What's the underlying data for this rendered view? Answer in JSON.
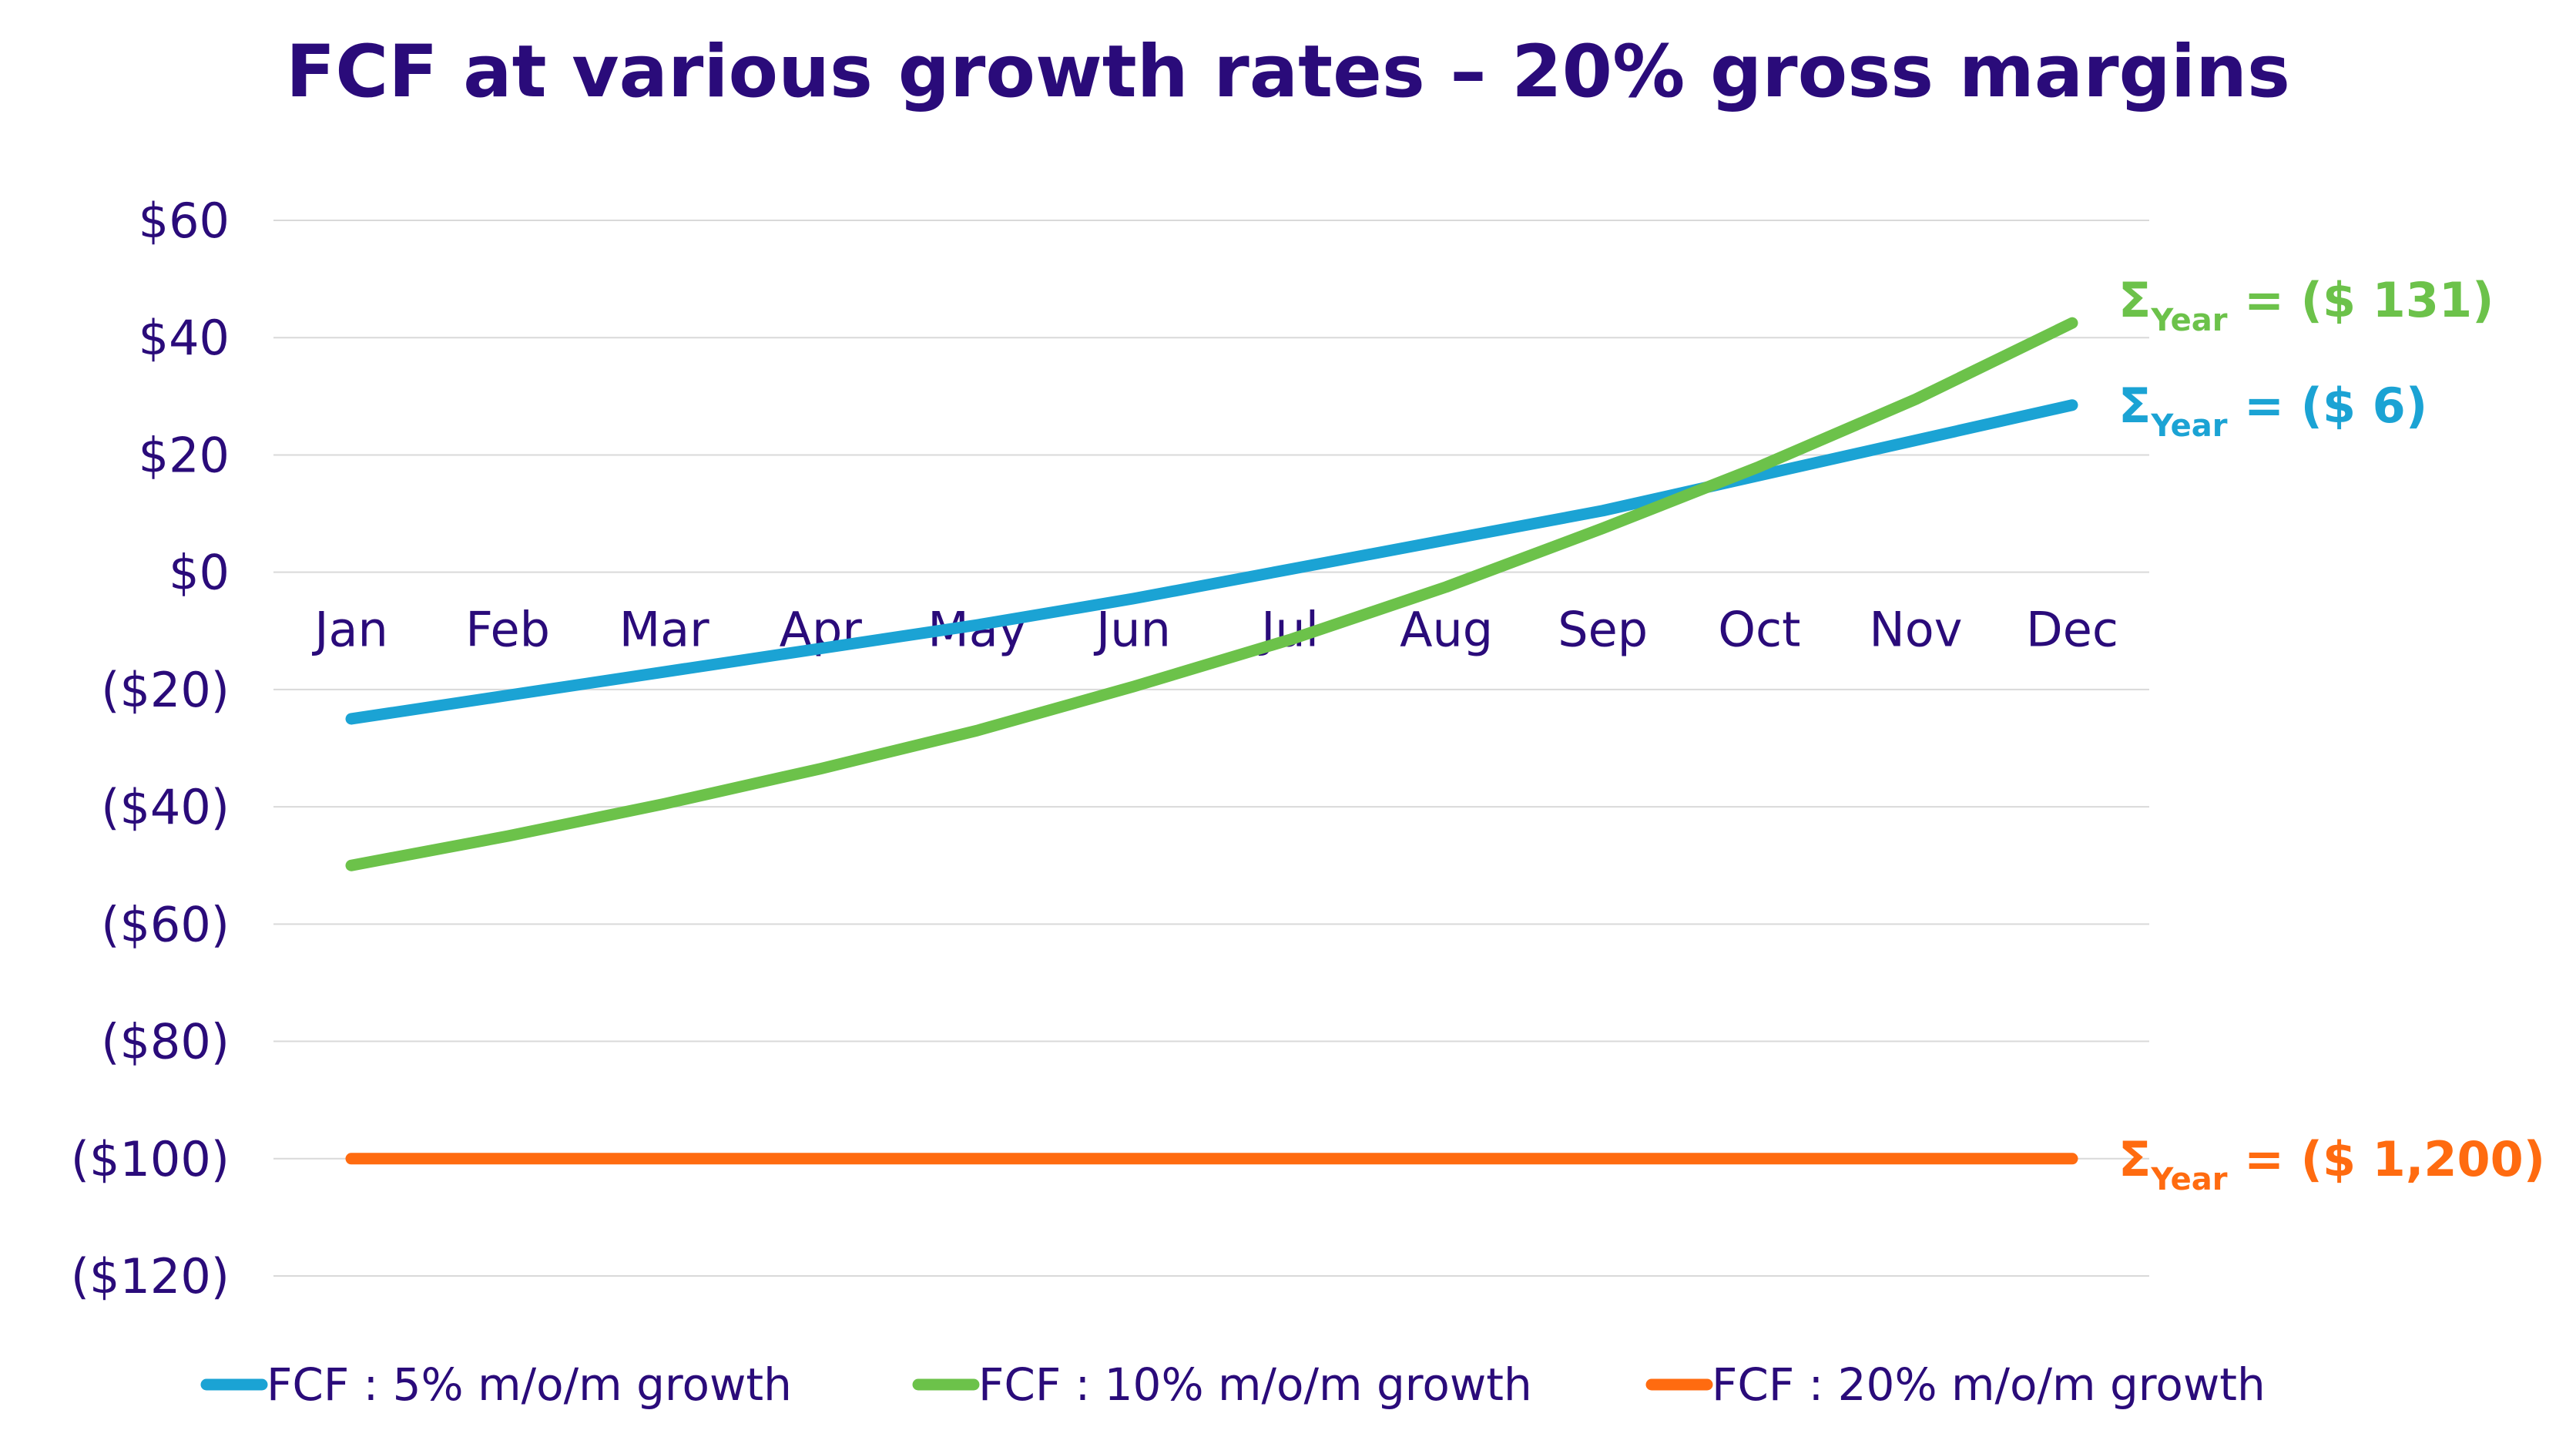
{
  "chart_data": {
    "type": "line",
    "title": "FCF at various growth rates – 20% gross margins",
    "xlabel": "",
    "ylabel": "",
    "categories": [
      "Jan",
      "Feb",
      "Mar",
      "Apr",
      "May",
      "Jun",
      "Jul",
      "Aug",
      "Sep",
      "Oct",
      "Nov",
      "Dec"
    ],
    "ylim": [
      -120,
      60
    ],
    "yticks": [
      60,
      40,
      20,
      0,
      -20,
      -40,
      -60,
      -80,
      -100,
      -120
    ],
    "ytick_labels": [
      "$60",
      "$40",
      "$20",
      "$0",
      "($20)",
      "($40)",
      "($60)",
      "($80)",
      "($100)",
      "($120)"
    ],
    "grid": true,
    "legend_position": "bottom",
    "series": [
      {
        "name": "FCF : 5% m/o/m growth",
        "color": "#1BA3D4",
        "values": [
          -25,
          -21,
          -17,
          -13,
          -9,
          -4.5,
          0.5,
          5.5,
          10.5,
          16.5,
          22.5,
          28.5
        ],
        "annotation": {
          "sigma": "Σ",
          "sub": "Year",
          "text": " = ($ 6)"
        }
      },
      {
        "name": "FCF : 10% m/o/m growth",
        "color": "#6CC24A",
        "values": [
          -50,
          -45,
          -39.5,
          -33.5,
          -27,
          -19.5,
          -11.5,
          -2.5,
          7.5,
          18,
          29.5,
          42.5
        ],
        "annotation": {
          "sigma": "Σ",
          "sub": "Year",
          "text": " = ($ 131)"
        }
      },
      {
        "name": "FCF : 20% m/o/m growth",
        "color": "#FF6B10",
        "values": [
          -100,
          -100,
          -100,
          -100,
          -100,
          -100,
          -100,
          -100,
          -100,
          -100,
          -100,
          -100
        ],
        "annotation": {
          "sigma": "Σ",
          "sub": "Year",
          "text": " = ($ 1,200)"
        }
      }
    ]
  }
}
